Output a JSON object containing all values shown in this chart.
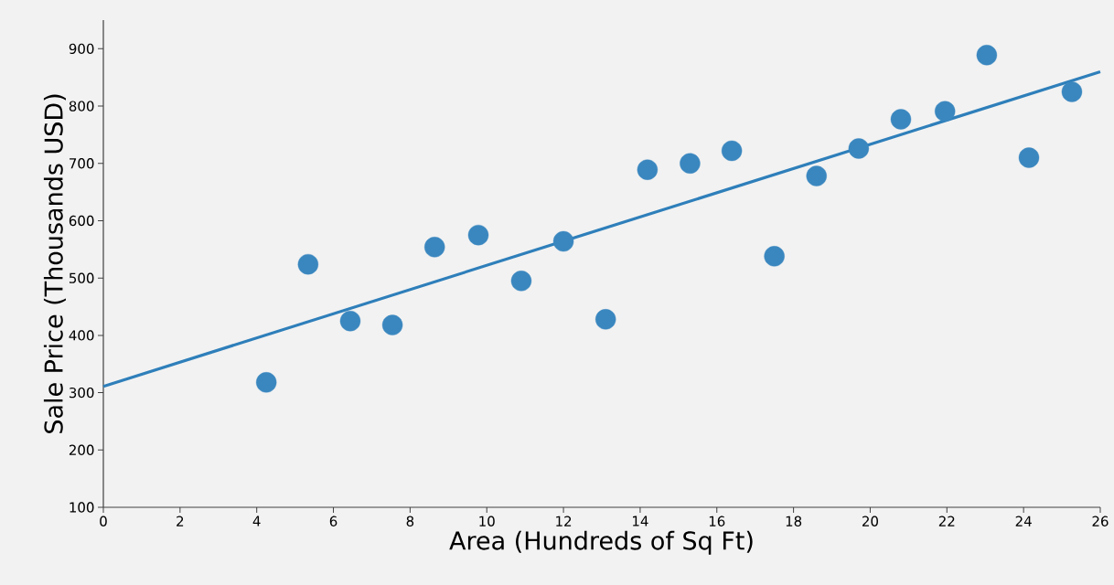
{
  "chart_data": {
    "type": "scatter",
    "xlabel": "Area (Hundreds of Sq Ft)",
    "ylabel": "Sale Price (Thousands USD)",
    "xlim": [
      0,
      26
    ],
    "ylim": [
      100,
      950
    ],
    "xticks": [
      0,
      2,
      4,
      6,
      8,
      10,
      12,
      14,
      16,
      18,
      20,
      22,
      24,
      26
    ],
    "yticks": [
      100,
      200,
      300,
      400,
      500,
      600,
      700,
      800,
      900
    ],
    "grid": false,
    "series": [
      {
        "marker": "circle",
        "color": "#3a87bf",
        "x": [
          4.25,
          5.34,
          6.44,
          7.54,
          8.64,
          9.78,
          10.9,
          12.0,
          13.1,
          14.19,
          15.3,
          16.39,
          17.5,
          18.6,
          19.7,
          20.8,
          21.95,
          23.04,
          24.14,
          25.26
        ],
        "values": [
          318,
          524,
          425,
          418,
          554,
          575,
          495,
          564,
          428,
          689,
          700,
          722,
          538,
          678,
          726,
          777,
          791,
          889,
          710,
          825
        ]
      },
      {
        "type": "line",
        "marker": "none",
        "line_style": "solid",
        "color": "#2e7fba",
        "x": [
          0,
          26
        ],
        "values": [
          311,
          860
        ]
      }
    ]
  }
}
